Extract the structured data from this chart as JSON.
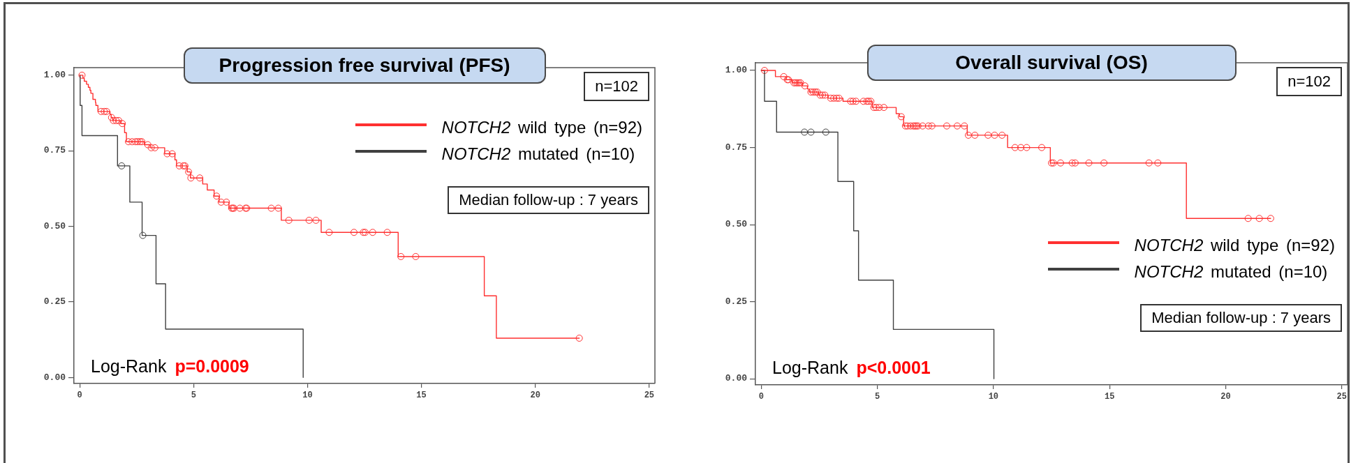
{
  "chart_data": [
    {
      "type": "step",
      "title": "Progression free survival (PFS)",
      "xlim": [
        -0.25,
        25.25
      ],
      "xticks": [
        0,
        5,
        10,
        15,
        20,
        25
      ],
      "ylim": [
        -0.02,
        1.025
      ],
      "yticks": [
        {
          "value": 0,
          "label": "0.00"
        },
        {
          "value": 0.25,
          "label": "0.25"
        },
        {
          "value": 0.5,
          "label": "0.50"
        },
        {
          "value": 0.75,
          "label": "0.75"
        },
        {
          "value": 1,
          "label": "1.00"
        }
      ],
      "legend": "top right",
      "annotations": [
        "n=102",
        "Median follow-up : 7 years",
        "Log-Rank",
        "p=0.0009"
      ],
      "series": [
        {
          "type": "step",
          "name": "NOTCH2 wild type (n=92)",
          "color": "#ff3030",
          "x": [
            0,
            0.14,
            0.2,
            0.3,
            0.38,
            0.45,
            0.49,
            0.58,
            0.69,
            0.71,
            0.8,
            1.33,
            1.38,
            1.45,
            1.8,
            1.97,
            2.05,
            2.84,
            3.09,
            3.73,
            4.18,
            4.25,
            4.72,
            4.86,
            5.4,
            5.6,
            5.9,
            6.12,
            6.55,
            8.85,
            10.6,
            13.98,
            17.76,
            18.29,
            21.93
          ],
          "values": [
            1,
            0.99,
            0.98,
            0.97,
            0.96,
            0.95,
            0.94,
            0.92,
            0.91,
            0.9,
            0.88,
            0.87,
            0.86,
            0.85,
            0.84,
            0.81,
            0.78,
            0.77,
            0.76,
            0.74,
            0.72,
            0.7,
            0.68,
            0.66,
            0.64,
            0.62,
            0.6,
            0.58,
            0.56,
            0.52,
            0.48,
            0.4,
            0.27,
            0.13,
            0.13
          ]
        },
        {
          "type": "step",
          "name": "NOTCH2 mutated (n=10)",
          "color": "#404040",
          "x": [
            0,
            0.02,
            0.1,
            1.66,
            2.2,
            2.74,
            3.35,
            3.77,
            9.81
          ],
          "values": [
            1,
            0.9,
            0.8,
            0.7,
            0.58,
            0.47,
            0.31,
            0.16,
            0
          ]
        },
        {
          "type": "scatter",
          "color": "#ff3030",
          "marker": "circle",
          "x": [
            0.1,
            0.94,
            1.08,
            1.18,
            1.4,
            1.48,
            1.6,
            1.71,
            1.87,
            2.14,
            2.3,
            2.45,
            2.55,
            2.65,
            2.73,
            2.99,
            3.14,
            3.3,
            3.84,
            4.06,
            4.37,
            4.55,
            4.62,
            4.78,
            4.88,
            5.27,
            6.01,
            6.21,
            6.44,
            6.67,
            6.72,
            6.77,
            7.03,
            7.28,
            7.33,
            8.41,
            8.72,
            9.18,
            10.07,
            10.37,
            10.95,
            12.04,
            12.45,
            12.53,
            12.86,
            13.5,
            14.1,
            14.75,
            21.93
          ],
          "values": [
            1,
            0.88,
            0.88,
            0.88,
            0.86,
            0.85,
            0.85,
            0.85,
            0.84,
            0.78,
            0.78,
            0.78,
            0.78,
            0.78,
            0.78,
            0.77,
            0.76,
            0.76,
            0.74,
            0.74,
            0.7,
            0.7,
            0.7,
            0.68,
            0.66,
            0.66,
            0.6,
            0.58,
            0.58,
            0.56,
            0.56,
            0.56,
            0.56,
            0.56,
            0.56,
            0.56,
            0.56,
            0.52,
            0.52,
            0.52,
            0.48,
            0.48,
            0.48,
            0.48,
            0.48,
            0.48,
            0.4,
            0.4,
            0.13
          ]
        },
        {
          "type": "scatter",
          "color": "#404040",
          "marker": "circle",
          "x": [
            1.84,
            2.77
          ],
          "values": [
            0.7,
            0.47
          ]
        }
      ]
    },
    {
      "type": "step",
      "title": "Overall survival (OS)",
      "xlim": [
        -0.25,
        25.25
      ],
      "xticks": [
        0,
        5,
        10,
        15,
        20,
        25
      ],
      "ylim": [
        -0.02,
        1.025
      ],
      "yticks": [
        {
          "value": 0,
          "label": "0.00"
        },
        {
          "value": 0.25,
          "label": "0.25"
        },
        {
          "value": 0.5,
          "label": "0.50"
        },
        {
          "value": 0.75,
          "label": "0.75"
        },
        {
          "value": 1,
          "label": "1.00"
        }
      ],
      "legend": "bottom right",
      "annotations": [
        "n=102",
        "Median follow-up : 7 years",
        "Log-Rank",
        "p<0.0001"
      ],
      "series": [
        {
          "type": "step",
          "name": "NOTCH2 wild type (n=92)",
          "color": "#ff3030",
          "x": [
            0,
            0.61,
            1.07,
            1.34,
            1.77,
            1.99,
            2.07,
            2.47,
            2.88,
            3.52,
            4.78,
            5.81,
            5.95,
            6.13,
            8.87,
            10.61,
            12.45,
            18.31,
            21.94
          ],
          "values": [
            1,
            0.98,
            0.97,
            0.96,
            0.95,
            0.94,
            0.93,
            0.92,
            0.91,
            0.9,
            0.88,
            0.86,
            0.85,
            0.82,
            0.79,
            0.75,
            0.7,
            0.52,
            0.52
          ]
        },
        {
          "type": "step",
          "name": "NOTCH2 mutated (n=10)",
          "color": "#404040",
          "x": [
            0,
            0.14,
            0.66,
            3.3,
            3.98,
            4.19,
            5.69,
            10.02
          ],
          "values": [
            1,
            0.9,
            0.8,
            0.64,
            0.48,
            0.32,
            0.16,
            0
          ]
        },
        {
          "type": "scatter",
          "color": "#ff3030",
          "marker": "circle",
          "x": [
            0.14,
            0.97,
            1.12,
            1.17,
            1.41,
            1.48,
            1.55,
            1.62,
            1.69,
            1.88,
            2.14,
            2.24,
            2.33,
            2.41,
            2.54,
            2.64,
            2.74,
            2.99,
            3.12,
            3.25,
            3.35,
            3.85,
            3.95,
            4.08,
            4.4,
            4.55,
            4.62,
            4.72,
            4.85,
            4.95,
            5.08,
            5.28,
            6.03,
            6.21,
            6.3,
            6.43,
            6.55,
            6.62,
            6.68,
            6.75,
            6.95,
            7.2,
            7.35,
            7.99,
            8.44,
            8.75,
            8.92,
            9.2,
            9.77,
            10.05,
            10.37,
            10.93,
            11.18,
            11.43,
            12.08,
            12.5,
            12.58,
            12.89,
            13.39,
            13.52,
            14.11,
            14.76,
            16.7,
            17.08,
            20.97,
            21.45,
            21.94
          ],
          "values": [
            1,
            0.98,
            0.97,
            0.97,
            0.96,
            0.96,
            0.96,
            0.96,
            0.96,
            0.95,
            0.93,
            0.93,
            0.93,
            0.93,
            0.92,
            0.92,
            0.92,
            0.91,
            0.91,
            0.91,
            0.91,
            0.9,
            0.9,
            0.9,
            0.9,
            0.9,
            0.9,
            0.9,
            0.88,
            0.88,
            0.88,
            0.88,
            0.85,
            0.82,
            0.82,
            0.82,
            0.82,
            0.82,
            0.82,
            0.82,
            0.82,
            0.82,
            0.82,
            0.82,
            0.82,
            0.82,
            0.79,
            0.79,
            0.79,
            0.79,
            0.79,
            0.75,
            0.75,
            0.75,
            0.75,
            0.7,
            0.7,
            0.7,
            0.7,
            0.7,
            0.7,
            0.7,
            0.7,
            0.7,
            0.52,
            0.52,
            0.52
          ]
        },
        {
          "type": "scatter",
          "color": "#404040",
          "marker": "circle",
          "x": [
            1.86,
            2.14,
            2.78
          ],
          "values": [
            0.8,
            0.8,
            0.8
          ]
        }
      ]
    }
  ]
}
